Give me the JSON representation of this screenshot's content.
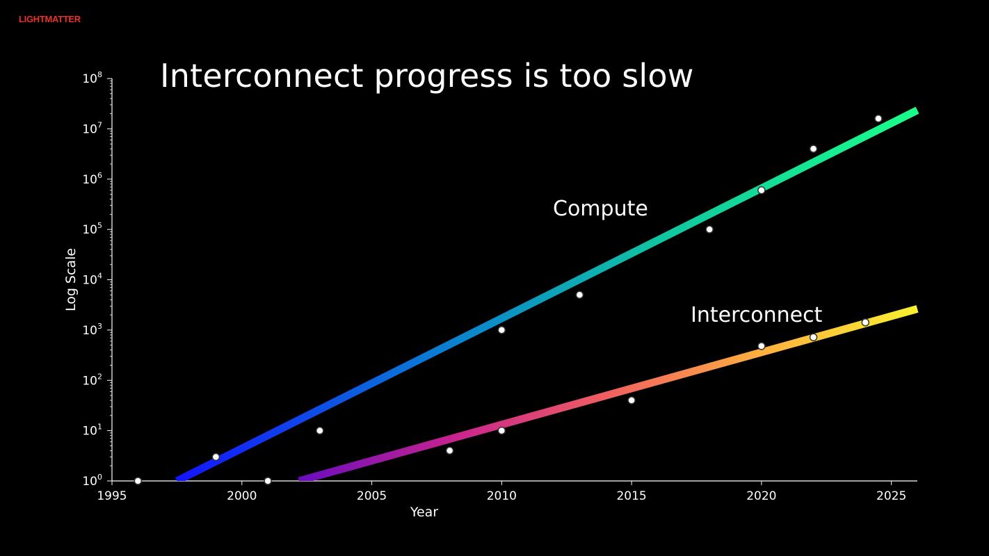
{
  "brand": {
    "logo_text": "LIGHTMATTER",
    "color": "#e8322b"
  },
  "slide": {
    "title": "Interconnect progress is too slow"
  },
  "chart_data": {
    "type": "scatter",
    "title": "Interconnect progress is too slow",
    "xlabel": "Year",
    "ylabel": "Log Scale",
    "xlim": [
      1995,
      2026
    ],
    "ylim_log10": [
      0,
      8
    ],
    "x_ticks": [
      1995,
      2000,
      2005,
      2010,
      2015,
      2020,
      2025
    ],
    "y_tick_exponents": [
      0,
      1,
      2,
      3,
      4,
      5,
      6,
      7,
      8
    ],
    "y_tick_base": "10",
    "series": [
      {
        "name": "Compute",
        "points": [
          [
            1996,
            1
          ],
          [
            1999,
            3
          ],
          [
            2001,
            1
          ],
          [
            2003,
            10
          ],
          [
            2010,
            1000
          ],
          [
            2013,
            5000
          ],
          [
            2018,
            100000
          ],
          [
            2020,
            600000
          ],
          [
            2022,
            4000000
          ],
          [
            2024.5,
            16000000
          ]
        ],
        "trend_log10": {
          "x0": 1997.5,
          "y0": 0,
          "x1": 2026,
          "y1": 7.37
        },
        "gradient": [
          "#1414ff",
          "#0a78d6",
          "#10c8a0",
          "#1aff88"
        ]
      },
      {
        "name": "Interconnect",
        "points": [
          [
            2008,
            4
          ],
          [
            2010,
            10
          ],
          [
            2015,
            40
          ],
          [
            2020,
            480
          ],
          [
            2022,
            720
          ],
          [
            2024,
            1420
          ]
        ],
        "trend_log10": {
          "x0": 2002.2,
          "y0": 0,
          "x1": 2026,
          "y1": 3.42
        },
        "gradient": [
          "#6a0dbf",
          "#c8238e",
          "#f06060",
          "#ffb040",
          "#f8f030"
        ]
      }
    ]
  }
}
